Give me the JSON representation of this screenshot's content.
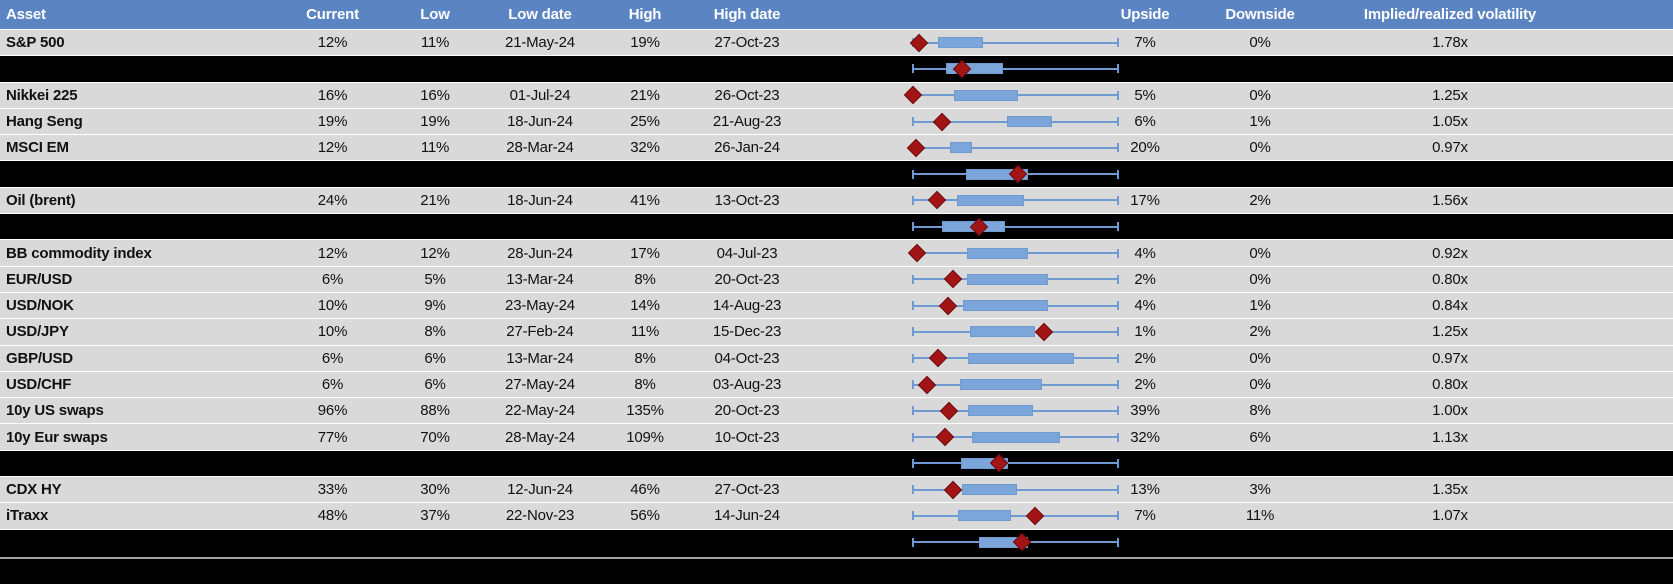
{
  "colors": {
    "header_bg": "#5b84c3",
    "row_bg": "#d9d9d9",
    "summary_bg": "#000000",
    "box_fill": "#7ca5da",
    "whisker": "#6e9ad4",
    "marker_fill": "#a31515"
  },
  "chart_data": {
    "type": "table",
    "description": "Implied volatility table with per-row normalized low-high range plots: whisker spans the 12m low to high, blue box marks the typical (interquartile) band, red diamond marks the current level; black rows are group-summary range plots only. Plot positions are fractions 0-1 of the low-to-high span.",
    "columns": [
      "Asset",
      "Current",
      "Low",
      "Low date",
      "High",
      "High date",
      "",
      "Upside",
      "Downside",
      "Implied/realized volatility"
    ],
    "rows": [
      {
        "type": "asset",
        "label": "S&P 500",
        "current": "12%",
        "low": "11%",
        "low_date": "21-May-24",
        "high": "19%",
        "high_date": "27-Oct-23",
        "upside": "7%",
        "downside": "0%",
        "implied_realized": "1.78x",
        "plot": {
          "box_start": 0.12,
          "box_end": 0.34,
          "marker": 0.03
        }
      },
      {
        "type": "summary",
        "plot": {
          "box_start": 0.16,
          "box_end": 0.44,
          "marker": 0.24
        }
      },
      {
        "type": "asset",
        "label": "Nikkei 225",
        "current": "16%",
        "low": "16%",
        "low_date": "01-Jul-24",
        "high": "21%",
        "high_date": "26-Oct-23",
        "upside": "5%",
        "downside": "0%",
        "implied_realized": "1.25x",
        "plot": {
          "box_start": 0.2,
          "box_end": 0.51,
          "marker": 0.0
        }
      },
      {
        "type": "asset",
        "label": "Hang Seng",
        "current": "19%",
        "low": "19%",
        "low_date": "18-Jun-24",
        "high": "25%",
        "high_date": "21-Aug-23",
        "upside": "6%",
        "downside": "1%",
        "implied_realized": "1.05x",
        "plot": {
          "box_start": 0.46,
          "box_end": 0.68,
          "marker": 0.14
        }
      },
      {
        "type": "asset",
        "label": "MSCI EM",
        "current": "12%",
        "low": "11%",
        "low_date": "28-Mar-24",
        "high": "32%",
        "high_date": "26-Jan-24",
        "upside": "20%",
        "downside": "0%",
        "implied_realized": "0.97x",
        "plot": {
          "box_start": 0.18,
          "box_end": 0.29,
          "marker": 0.015
        }
      },
      {
        "type": "summary",
        "plot": {
          "box_start": 0.26,
          "box_end": 0.56,
          "marker": 0.51
        }
      },
      {
        "type": "asset",
        "label": "Oil (brent)",
        "current": "24%",
        "low": "21%",
        "low_date": "18-Jun-24",
        "high": "41%",
        "high_date": "13-Oct-23",
        "upside": "17%",
        "downside": "2%",
        "implied_realized": "1.56x",
        "plot": {
          "box_start": 0.215,
          "box_end": 0.54,
          "marker": 0.117
        }
      },
      {
        "type": "summary",
        "plot": {
          "box_start": 0.14,
          "box_end": 0.45,
          "marker": 0.32
        }
      },
      {
        "type": "asset",
        "label": "BB commodity index",
        "current": "12%",
        "low": "12%",
        "low_date": "28-Jun-24",
        "high": "17%",
        "high_date": "04-Jul-23",
        "upside": "4%",
        "downside": "0%",
        "implied_realized": "0.92x",
        "plot": {
          "box_start": 0.263,
          "box_end": 0.561,
          "marker": 0.02
        }
      },
      {
        "type": "asset",
        "label": "EUR/USD",
        "current": "6%",
        "low": "5%",
        "low_date": "13-Mar-24",
        "high": "8%",
        "high_date": "20-Oct-23",
        "upside": "2%",
        "downside": "0%",
        "implied_realized": "0.80x",
        "plot": {
          "box_start": 0.263,
          "box_end": 0.659,
          "marker": 0.195
        }
      },
      {
        "type": "asset",
        "label": "USD/NOK",
        "current": "10%",
        "low": "9%",
        "low_date": "23-May-24",
        "high": "14%",
        "high_date": "14-Aug-23",
        "upside": "4%",
        "downside": "1%",
        "implied_realized": "0.84x",
        "plot": {
          "box_start": 0.244,
          "box_end": 0.659,
          "marker": 0.171
        }
      },
      {
        "type": "asset",
        "label": "USD/JPY",
        "current": "10%",
        "low": "8%",
        "low_date": "27-Feb-24",
        "high": "11%",
        "high_date": "15-Dec-23",
        "upside": "1%",
        "downside": "2%",
        "implied_realized": "1.25x",
        "plot": {
          "box_start": 0.278,
          "box_end": 0.595,
          "marker": 0.639
        }
      },
      {
        "type": "asset",
        "label": "GBP/USD",
        "current": "6%",
        "low": "6%",
        "low_date": "13-Mar-24",
        "high": "8%",
        "high_date": "04-Oct-23",
        "upside": "2%",
        "downside": "0%",
        "implied_realized": "0.97x",
        "plot": {
          "box_start": 0.268,
          "box_end": 0.785,
          "marker": 0.122
        }
      },
      {
        "type": "asset",
        "label": "USD/CHF",
        "current": "6%",
        "low": "6%",
        "low_date": "27-May-24",
        "high": "8%",
        "high_date": "03-Aug-23",
        "upside": "2%",
        "downside": "0%",
        "implied_realized": "0.80x",
        "plot": {
          "box_start": 0.229,
          "box_end": 0.629,
          "marker": 0.068
        }
      },
      {
        "type": "asset",
        "label": "10y US swaps",
        "current": "96%",
        "low": "88%",
        "low_date": "22-May-24",
        "high": "135%",
        "high_date": "20-Oct-23",
        "upside": "39%",
        "downside": "8%",
        "implied_realized": "1.00x",
        "plot": {
          "box_start": 0.268,
          "box_end": 0.585,
          "marker": 0.176
        }
      },
      {
        "type": "asset",
        "label": "10y Eur swaps",
        "current": "77%",
        "low": "70%",
        "low_date": "28-May-24",
        "high": "109%",
        "high_date": "10-Oct-23",
        "upside": "32%",
        "downside": "6%",
        "implied_realized": "1.13x",
        "plot": {
          "box_start": 0.288,
          "box_end": 0.717,
          "marker": 0.156
        }
      },
      {
        "type": "summary",
        "plot": {
          "box_start": 0.234,
          "box_end": 0.463,
          "marker": 0.42
        }
      },
      {
        "type": "asset",
        "label": "CDX HY",
        "current": "33%",
        "low": "30%",
        "low_date": "12-Jun-24",
        "high": "46%",
        "high_date": "27-Oct-23",
        "upside": "13%",
        "downside": "3%",
        "implied_realized": "1.35x",
        "plot": {
          "box_start": 0.239,
          "box_end": 0.507,
          "marker": 0.195
        }
      },
      {
        "type": "asset",
        "label": "iTraxx",
        "current": "48%",
        "low": "37%",
        "low_date": "22-Nov-23",
        "high": "56%",
        "high_date": "14-Jun-24",
        "upside": "7%",
        "downside": "11%",
        "implied_realized": "1.07x",
        "plot": {
          "box_start": 0.22,
          "box_end": 0.478,
          "marker": 0.595
        }
      },
      {
        "type": "summary",
        "plot": {
          "box_start": 0.32,
          "box_end": 0.56,
          "marker": 0.53
        }
      }
    ]
  }
}
